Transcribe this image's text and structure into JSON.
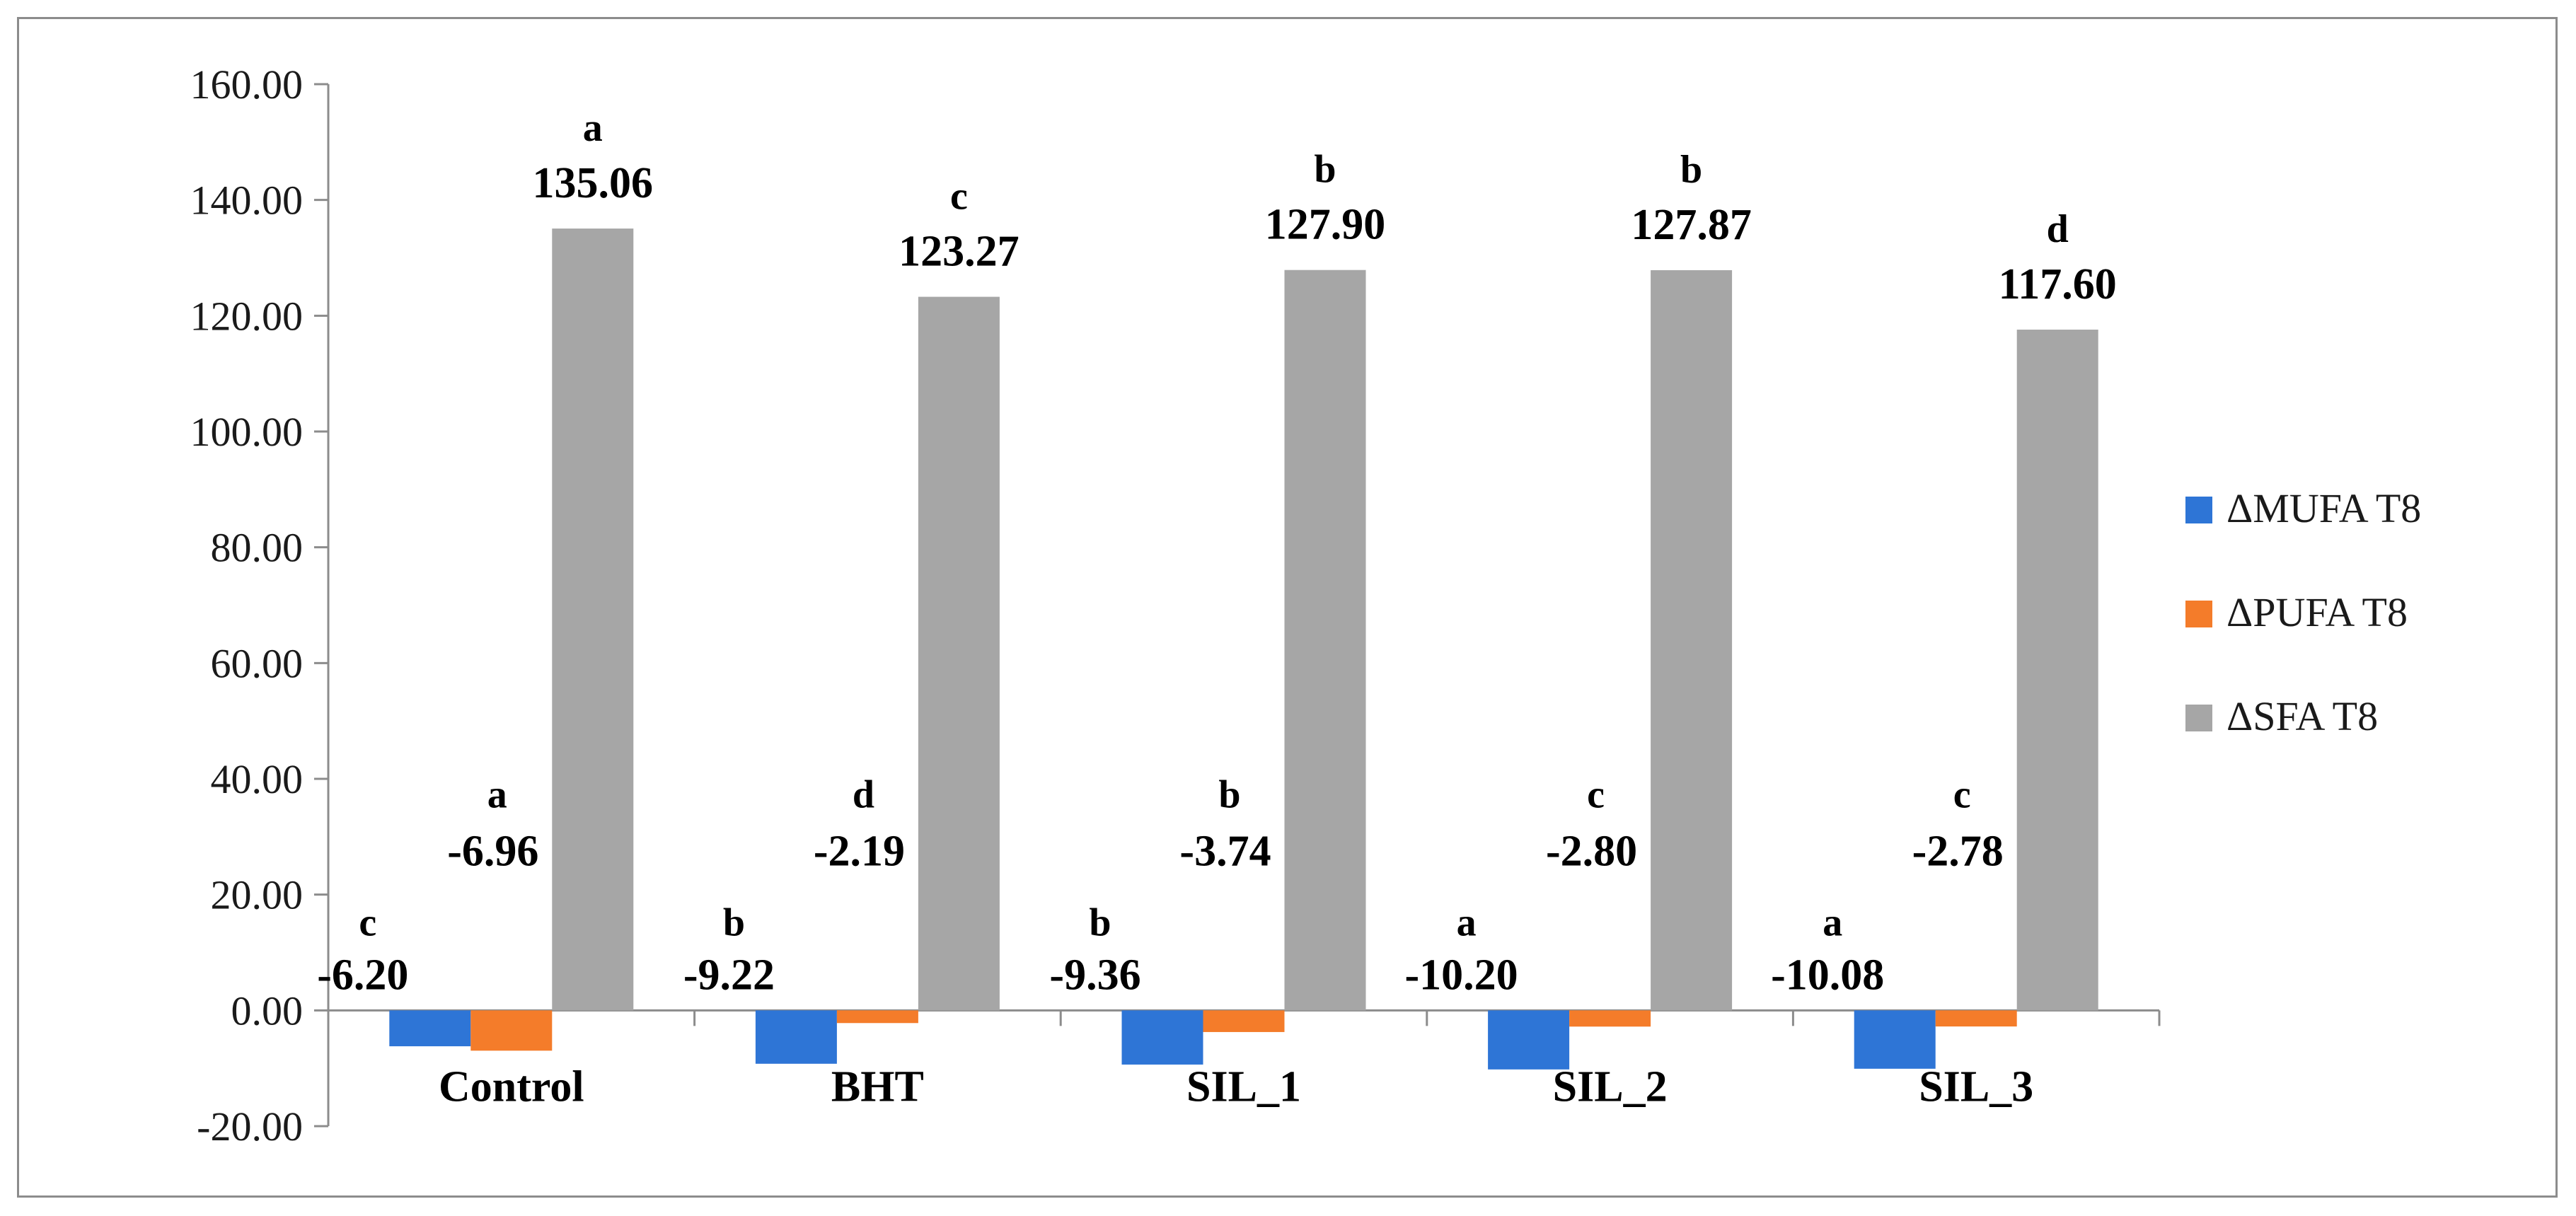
{
  "chart_data": {
    "type": "bar",
    "title": "",
    "xlabel": "",
    "ylabel": "",
    "categories": [
      "Control",
      "BHT",
      "SIL_1",
      "SIL_2",
      "SIL_3"
    ],
    "ylim": [
      -20,
      160
    ],
    "yticks": [
      "160.00",
      "140.00",
      "120.00",
      "100.00",
      "80.00",
      "60.00",
      "40.00",
      "20.00",
      "0.00",
      "-20.00"
    ],
    "ytick_values": [
      160,
      140,
      120,
      100,
      80,
      60,
      40,
      20,
      0,
      -20
    ],
    "grid": false,
    "legend_position": "right",
    "series": [
      {
        "name": "ΔMUFA T8",
        "color": "#2e75d6",
        "values": [
          -6.2,
          -9.22,
          -9.36,
          -10.2,
          -10.08
        ],
        "value_labels": [
          "-6.20",
          "-9.22",
          "-9.36",
          "-10.20",
          "-10.08"
        ],
        "letters": [
          "c",
          "b",
          "b",
          "a",
          "a"
        ]
      },
      {
        "name": "ΔPUFA T8",
        "color": "#f47c2a",
        "values": [
          -6.96,
          -2.19,
          -3.74,
          -2.8,
          -2.78
        ],
        "value_labels": [
          "-6.96",
          "-2.19",
          "-3.74",
          "-2.80",
          "-2.78"
        ],
        "letters": [
          "a",
          "d",
          "b",
          "c",
          "c"
        ]
      },
      {
        "name": "ΔSFA T8",
        "color": "#a6a6a6",
        "values": [
          135.06,
          123.27,
          127.9,
          127.87,
          117.6
        ],
        "value_labels": [
          "135.06",
          "123.27",
          "127.90",
          "127.87",
          "117.60"
        ],
        "letters": [
          "a",
          "c",
          "b",
          "b",
          "d"
        ]
      }
    ]
  }
}
